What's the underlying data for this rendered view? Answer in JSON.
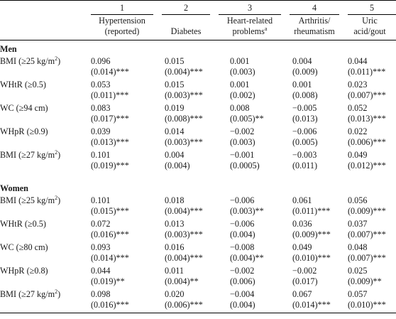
{
  "columns": [
    {
      "number": "1",
      "name_line1": "Hypertension",
      "name_line2": "(reported)",
      "sup": ""
    },
    {
      "number": "2",
      "name_line1": "",
      "name_line2": "Diabetes",
      "sup": ""
    },
    {
      "number": "3",
      "name_line1": "Heart-related",
      "name_line2": "problems",
      "sup": "a"
    },
    {
      "number": "4",
      "name_line1": "Arthritis/",
      "name_line2": "rheumatism",
      "sup": ""
    },
    {
      "number": "5",
      "name_line1": "Uric",
      "name_line2": "acid/gout",
      "sup": ""
    }
  ],
  "sections": [
    {
      "title": "Men",
      "rows": [
        {
          "label": "BMI (≥25 kg/m",
          "label_sup": "2",
          "label_end": ")",
          "coef": [
            "0.096",
            "0.015",
            "0.001",
            "0.004",
            "0.044"
          ],
          "se": [
            "(0.014)***",
            "(0.004)***",
            "(0.003)",
            "(0.009)",
            "(0.011)***"
          ]
        },
        {
          "label": "WHtR (≥0.5)",
          "label_sup": "",
          "label_end": "",
          "coef": [
            "0.053",
            "0.015",
            "0.001",
            "0.001",
            "0.023"
          ],
          "se": [
            "(0.011)***",
            "(0.003)***",
            "(0.002)",
            "(0.008)",
            "(0.007)***"
          ]
        },
        {
          "label": "WC (≥94 cm)",
          "label_sup": "",
          "label_end": "",
          "coef": [
            "0.083",
            "0.019",
            "0.008",
            "−0.005",
            "0.052"
          ],
          "se": [
            "(0.017)***",
            "(0.008)***",
            "(0.005)**",
            "(0.013)",
            "(0.013)***"
          ]
        },
        {
          "label": "WHpR (≥0.9)",
          "label_sup": "",
          "label_end": "",
          "coef": [
            "0.039",
            "0.014",
            "−0.002",
            "−0.006",
            "0.022"
          ],
          "se": [
            "(0.013)***",
            "(0.003)***",
            "(0.003)",
            "(0.005)",
            "(0.006)***"
          ]
        },
        {
          "label": "BMI (≥27 kg/m",
          "label_sup": "2",
          "label_end": ")",
          "coef": [
            "0.101",
            "0.004",
            "−0.001",
            "−0.003",
            "0.049"
          ],
          "se": [
            "(0.019)***",
            "(0.004)",
            "(0.0005)",
            "(0.011)",
            "(0.012)***"
          ]
        }
      ]
    },
    {
      "title": "Women",
      "rows": [
        {
          "label": "BMI (≥25 kg/m",
          "label_sup": "2",
          "label_end": ")",
          "coef": [
            "0.101",
            "0.018",
            "−0.006",
            "0.061",
            "0.056"
          ],
          "se": [
            "(0.015)***",
            "(0.004)***",
            "(0.003)**",
            "(0.011)***",
            "(0.009)***"
          ]
        },
        {
          "label": "WHtR (≥0.5)",
          "label_sup": "",
          "label_end": "",
          "coef": [
            "0.072",
            "0.013",
            "−0.006",
            "0.036",
            "0.037"
          ],
          "se": [
            "(0.016)***",
            "(0.003)***",
            "(0.004)",
            "(0.009)***",
            "(0.007)***"
          ]
        },
        {
          "label": "WC (≥80 cm)",
          "label_sup": "",
          "label_end": "",
          "coef": [
            "0.093",
            "0.016",
            "−0.008",
            "0.049",
            "0.048"
          ],
          "se": [
            "(0.014)***",
            "(0.004)***",
            "(0.004)**",
            "(0.010)***",
            "(0.007)***"
          ]
        },
        {
          "label": "WHpR (≥0.8)",
          "label_sup": "",
          "label_end": "",
          "coef": [
            "0.044",
            "0.011",
            "−0.002",
            "−0.002",
            "0.025"
          ],
          "se": [
            "(0.019)**",
            "(0.004)**",
            "(0.006)",
            "(0.017)",
            "(0.009)**"
          ]
        },
        {
          "label": "BMI (≥27 kg/m",
          "label_sup": "2",
          "label_end": ")",
          "coef": [
            "0.098",
            "0.020",
            "−0.004",
            "0.067",
            "0.057"
          ],
          "se": [
            "(0.016)***",
            "(0.006)***",
            "(0.004)",
            "(0.014)***",
            "(0.010)***"
          ]
        }
      ]
    }
  ]
}
